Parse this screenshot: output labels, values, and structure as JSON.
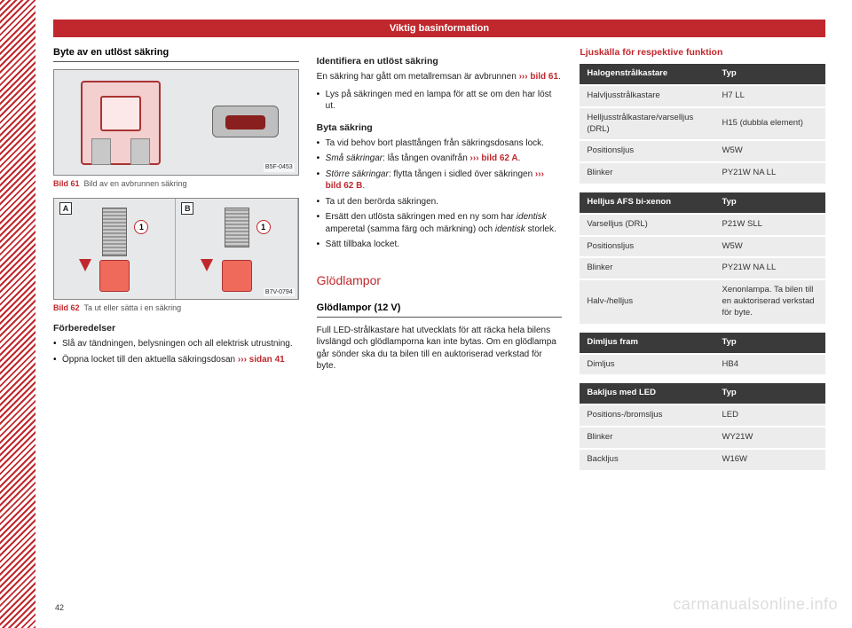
{
  "chapter_title": "Viktig basinformation",
  "page_number": "42",
  "watermark": "carmanualsonline.info",
  "col1": {
    "h_section": "Byte av en utlöst säkring",
    "fig1_code": "B5F-0453",
    "fig1_caption_num": "Bild 61",
    "fig1_caption_text": "Bild av en avbrunnen säkring",
    "fig2_code": "B7V-0794",
    "fig2_panelA": "A",
    "fig2_panelB": "B",
    "fig2_circle": "1",
    "fig2_caption_num": "Bild 62",
    "fig2_caption_text": "Ta ut eller sätta i en säkring",
    "prep_heading": "Förberedelser",
    "prep_b1": "Slå av tändningen, belysningen och all elektrisk utrustning.",
    "prep_b2_a": "Öppna locket till den aktuella säkringsdosan ",
    "prep_b2_ref": "››› sidan 41"
  },
  "col2": {
    "ident_heading": "Identifiera en utlöst säkring",
    "ident_p1_a": "En säkring har gått om metallremsan är avbrunnen ",
    "ident_p1_ref": "››› bild 61",
    "ident_p1_b": ".",
    "ident_b1": "Lys på säkringen med en lampa för att se om den har löst ut.",
    "change_heading": "Byta säkring",
    "change_b1": "Ta vid behov bort plasttången från säkringsdosans lock.",
    "change_b2_a_em": "Små säkringar",
    "change_b2_a": ": lås tången ovanifrån ",
    "change_b2_ref": "››› bild 62 A",
    "change_b2_b": ".",
    "change_b3_a_em": "Större säkringar",
    "change_b3_a": ": flytta tången i sidled över säkringen ",
    "change_b3_ref": "››› bild 62 B",
    "change_b3_b": ".",
    "change_b4": "Ta ut den berörda säkringen.",
    "change_b5_a": "Ersätt den utlösta säkringen med en ny som har ",
    "change_b5_em1": "identisk",
    "change_b5_b": " amperetal (samma färg och märkning) och ",
    "change_b5_em2": "identisk",
    "change_b5_c": " storlek.",
    "change_b6": "Sätt tillbaka locket.",
    "bulbs_chapter": "Glödlampor",
    "bulbs_section": "Glödlampor (12 V)",
    "bulbs_p": "Full LED-strålkastare hat utvecklats för att räcka hela bilens livslängd och glödlamporna kan inte bytas. Om en glödlampa går sönder ska du ta bilen till en auktoriserad verkstad för byte."
  },
  "col3": {
    "light_source_heading": "Ljuskälla för respektive funktion",
    "tables": {
      "t1": {
        "h1": "Halogenstrålkastare",
        "h2": "Typ",
        "rows": [
          [
            "Halvljusstrålkastare",
            "H7 LL"
          ],
          [
            "Helljusstrålkastare/varselljus (DRL)",
            "H15 (dubbla element)"
          ],
          [
            "Positionsljus",
            "W5W"
          ],
          [
            "Blinker",
            "PY21W NA LL"
          ]
        ]
      },
      "t2": {
        "h1": "Helljus AFS bi-xenon",
        "h2": "Typ",
        "rows": [
          [
            "Varselljus (DRL)",
            "P21W SLL"
          ],
          [
            "Positionsljus",
            "W5W"
          ],
          [
            "Blinker",
            "PY21W NA LL"
          ],
          [
            "Halv-/helljus",
            "Xenonlampa. Ta bilen till en auktoriserad verkstad för byte."
          ]
        ]
      },
      "t3": {
        "h1": "Dimljus fram",
        "h2": "Typ",
        "rows": [
          [
            "Dimljus",
            "HB4"
          ]
        ]
      },
      "t4": {
        "h1": "Bakljus med LED",
        "h2": "Typ",
        "rows": [
          [
            "Positions-/bromsljus",
            "LED"
          ],
          [
            "Blinker",
            "WY21W"
          ],
          [
            "Backljus",
            "W16W"
          ]
        ]
      }
    }
  }
}
